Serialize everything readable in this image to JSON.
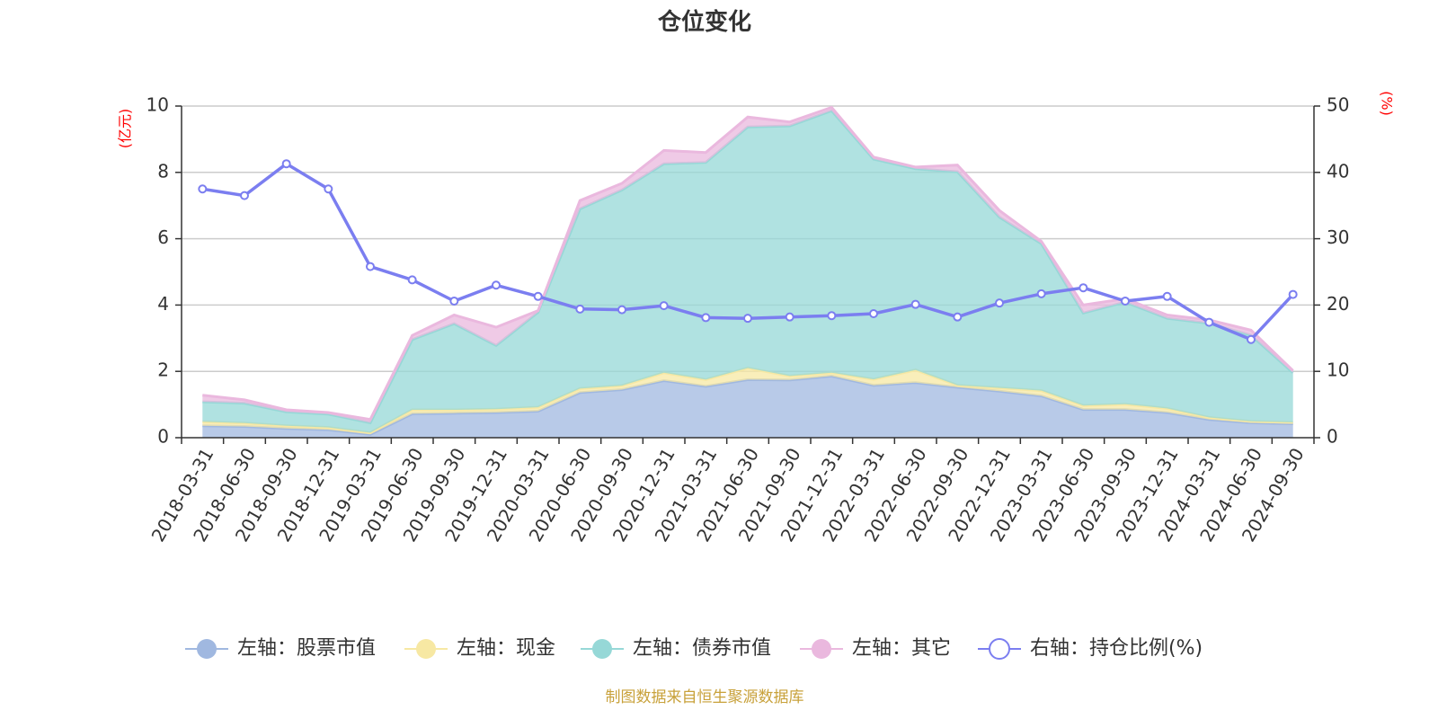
{
  "chart_data": {
    "type": "area",
    "title": "仓位变化",
    "left_axis_unit": "(亿元)",
    "right_axis_unit": "(%)",
    "left_ylim": [
      0,
      10
    ],
    "left_yticks": [
      "0",
      "2",
      "4",
      "6",
      "8",
      "10"
    ],
    "right_ylim": [
      0,
      50
    ],
    "right_yticks": [
      "0",
      "10",
      "20",
      "30",
      "40",
      "50"
    ],
    "x": [
      "2018-03-31",
      "2018-06-30",
      "2018-09-30",
      "2018-12-31",
      "2019-03-31",
      "2019-06-30",
      "2019-09-30",
      "2019-12-31",
      "2020-03-31",
      "2020-06-30",
      "2020-09-30",
      "2020-12-31",
      "2021-03-31",
      "2021-06-30",
      "2021-09-30",
      "2021-12-31",
      "2022-03-31",
      "2022-06-30",
      "2022-09-30",
      "2022-12-31",
      "2023-03-31",
      "2023-06-30",
      "2023-09-30",
      "2023-12-31",
      "2024-03-31",
      "2024-06-30",
      "2024-09-30"
    ],
    "stacked": true,
    "grid": true,
    "legend_position": "bottom",
    "series": [
      {
        "name": "左轴：股票市值",
        "axis": "left",
        "type": "area",
        "color": "#a0b8e0",
        "values": [
          0.36,
          0.34,
          0.28,
          0.24,
          0.1,
          0.72,
          0.74,
          0.76,
          0.8,
          1.36,
          1.45,
          1.72,
          1.55,
          1.75,
          1.74,
          1.86,
          1.58,
          1.66,
          1.52,
          1.4,
          1.26,
          0.85,
          0.85,
          0.76,
          0.55,
          0.45,
          0.42
        ]
      },
      {
        "name": "左轴：现金",
        "axis": "left",
        "type": "area",
        "color": "#f7e8a3",
        "values": [
          0.12,
          0.1,
          0.08,
          0.07,
          0.05,
          0.12,
          0.1,
          0.1,
          0.12,
          0.12,
          0.12,
          0.24,
          0.2,
          0.35,
          0.12,
          0.1,
          0.18,
          0.38,
          0.06,
          0.1,
          0.16,
          0.12,
          0.16,
          0.12,
          0.06,
          0.04,
          0.04
        ]
      },
      {
        "name": "左轴：债券市值",
        "axis": "left",
        "type": "area",
        "color": "#96d8d7",
        "values": [
          0.6,
          0.6,
          0.42,
          0.4,
          0.3,
          2.12,
          2.6,
          1.92,
          2.86,
          5.42,
          5.9,
          6.3,
          6.55,
          7.27,
          7.54,
          7.9,
          6.64,
          6.07,
          6.44,
          5.15,
          4.43,
          2.79,
          3.08,
          2.72,
          2.84,
          2.6,
          1.5
        ]
      },
      {
        "name": "左轴：其它",
        "axis": "left",
        "type": "area",
        "color": "#eab8de",
        "values": [
          0.2,
          0.1,
          0.06,
          0.05,
          0.1,
          0.12,
          0.26,
          0.55,
          0.05,
          0.25,
          0.2,
          0.4,
          0.3,
          0.3,
          0.12,
          0.1,
          0.06,
          0.05,
          0.2,
          0.2,
          0.07,
          0.24,
          0.1,
          0.1,
          0.1,
          0.15,
          0.06
        ]
      },
      {
        "name": "右轴：持仓比例(%)",
        "axis": "right",
        "type": "line",
        "color": "#7b7ef0",
        "values": [
          37.5,
          36.5,
          41.3,
          37.5,
          25.8,
          23.8,
          20.6,
          23.0,
          21.3,
          19.4,
          19.3,
          19.9,
          18.1,
          18.0,
          18.2,
          18.4,
          18.7,
          20.1,
          18.2,
          20.3,
          21.7,
          22.6,
          20.6,
          21.3,
          17.4,
          14.8,
          21.6
        ]
      }
    ],
    "source_note": "制图数据来自恒生聚源数据库"
  }
}
